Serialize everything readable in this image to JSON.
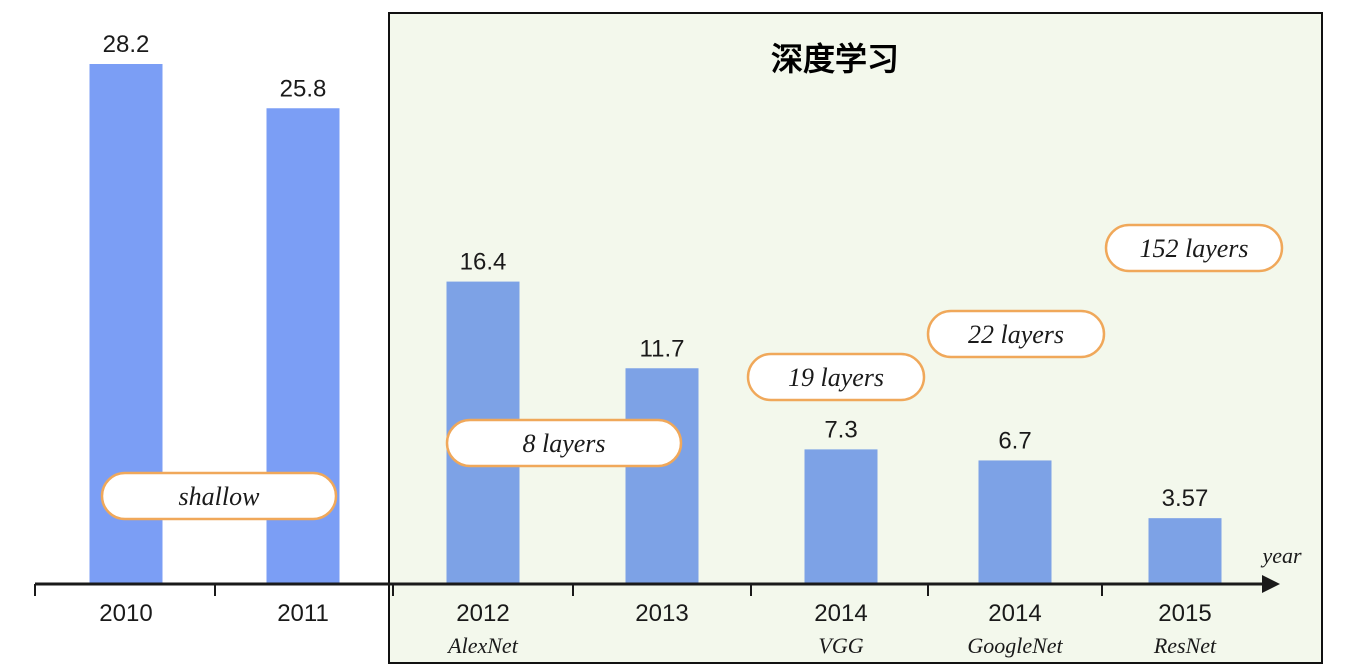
{
  "chart_data": {
    "type": "bar",
    "title": "深度学习",
    "xlabel": "year",
    "ylabel": "",
    "ylim": [
      0,
      30
    ],
    "grid": false,
    "categories": [
      "2010",
      "2011",
      "2012",
      "2013",
      "2014",
      "2014",
      "2015"
    ],
    "sublabels": [
      "",
      "",
      "AlexNet",
      "",
      "VGG",
      "GoogleNet",
      "ResNet"
    ],
    "values": [
      28.2,
      25.8,
      16.4,
      11.7,
      7.3,
      6.7,
      3.57
    ],
    "value_labels": [
      "28.2",
      "25.8",
      "16.4",
      "11.7",
      "7.3",
      "6.7",
      "3.57"
    ],
    "annotations": [
      "shallow",
      "8 layers",
      "19 layers",
      "22 layers",
      "152 layers"
    ],
    "highlight_region": {
      "label": "深度学习",
      "categories": [
        "2012",
        "2013",
        "2014",
        "2014",
        "2015"
      ]
    },
    "colors": {
      "shallow_bar": "#7b9ef5",
      "deep_bar": "#7da2e6",
      "panel_bg": "#f3f8ec",
      "pill_border": "#f0a85a",
      "axis": "#1a1a1a"
    }
  }
}
